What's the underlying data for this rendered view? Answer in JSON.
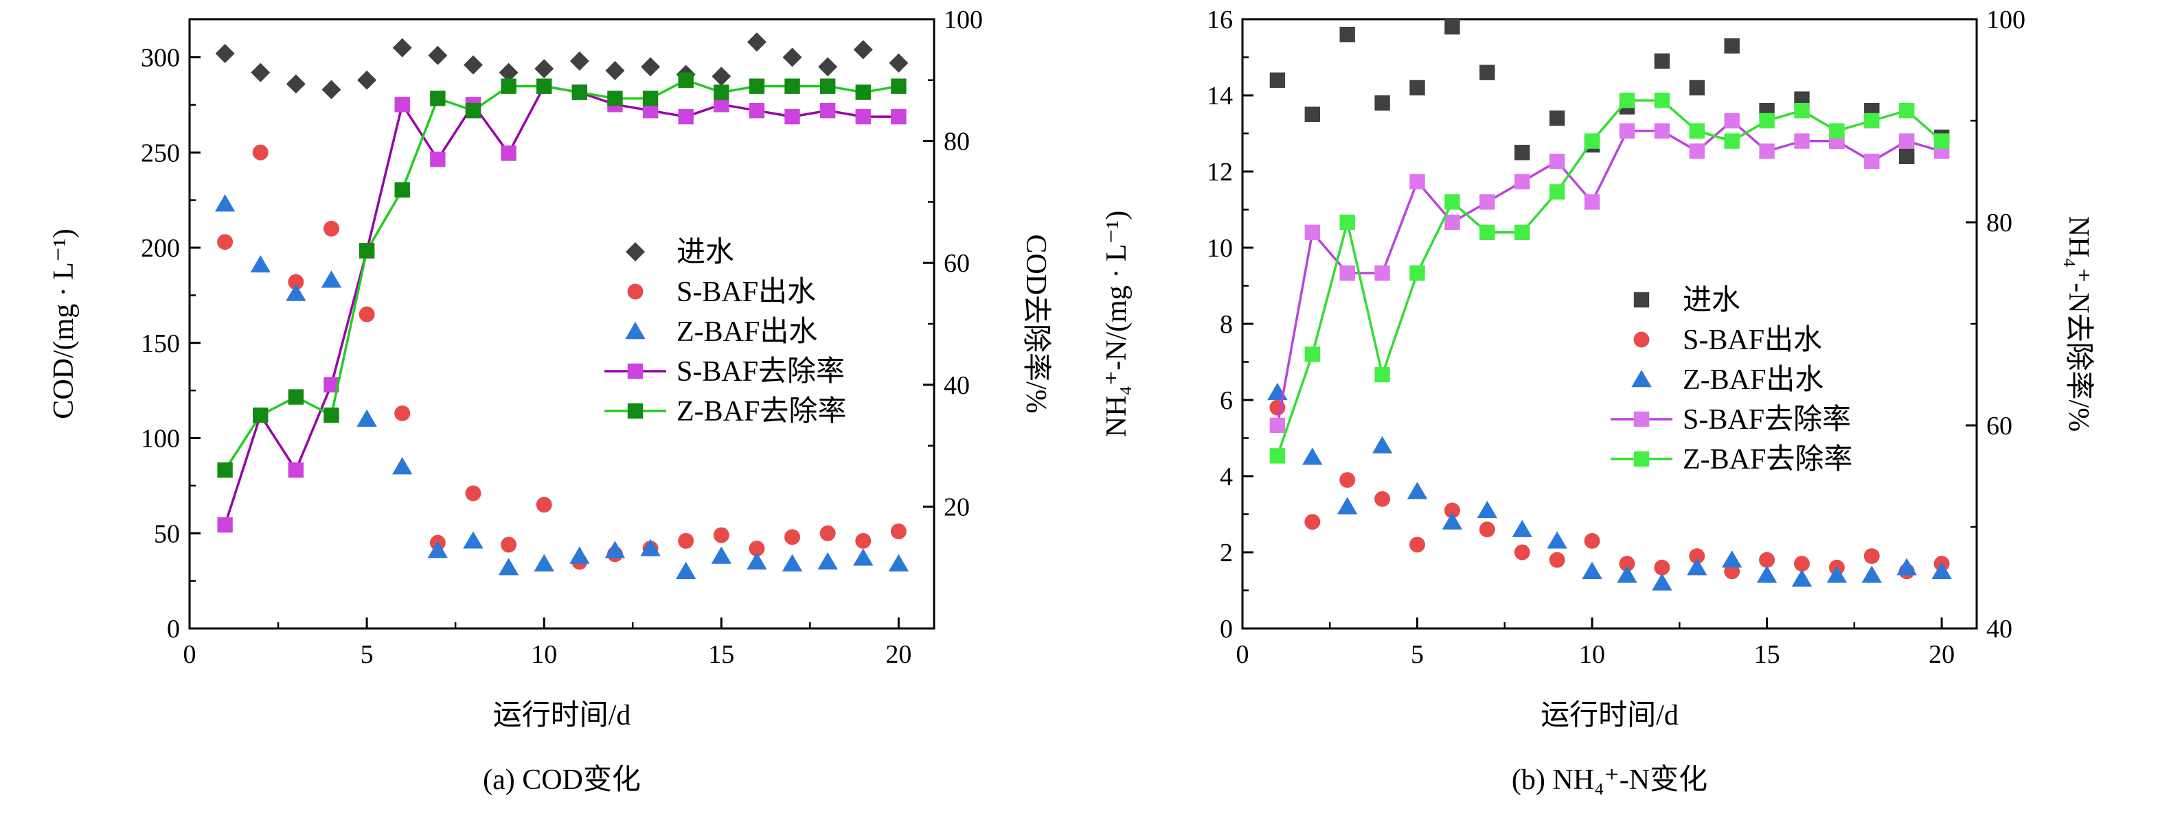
{
  "chart_data": [
    {
      "id": "cod",
      "type": "scatter",
      "caption": "(a) COD变化",
      "xlabel": "运行时间/d",
      "ylabel": "COD/(mg · L⁻¹)",
      "y2label": "COD去除率/%",
      "xlim": [
        0,
        21
      ],
      "ylim": [
        0,
        320
      ],
      "y2lim": [
        0,
        100
      ],
      "xticks": [
        0,
        5,
        10,
        15,
        20
      ],
      "yticks": [
        0,
        50,
        100,
        150,
        200,
        250,
        300
      ],
      "y2ticks": [
        20,
        40,
        60,
        80,
        100
      ],
      "grid": false,
      "legend_position": "center-right",
      "legend": [
        "进水",
        "S-BAF出水",
        "Z-BAF出水",
        "S-BAF去除率",
        "Z-BAF去除率"
      ],
      "series": [
        {
          "name": "进水",
          "axis": "left",
          "marker": "diamond",
          "color": "#404040",
          "x": [
            1,
            2,
            3,
            4,
            5,
            6,
            7,
            8,
            9,
            10,
            11,
            12,
            13,
            14,
            15,
            16,
            17,
            18,
            19,
            20
          ],
          "values": [
            302,
            292,
            286,
            283,
            288,
            305,
            301,
            296,
            292,
            294,
            298,
            293,
            295,
            291,
            290,
            308,
            300,
            295,
            304,
            297
          ]
        },
        {
          "name": "S-BAF出水",
          "axis": "left",
          "marker": "circle",
          "color": "#e84a4a",
          "x": [
            1,
            2,
            3,
            4,
            5,
            6,
            7,
            8,
            9,
            10,
            11,
            12,
            13,
            14,
            15,
            16,
            17,
            18,
            19,
            20
          ],
          "values": [
            203,
            250,
            182,
            210,
            165,
            113,
            45,
            71,
            44,
            65,
            35,
            39,
            42,
            46,
            49,
            42,
            48,
            50,
            46,
            51
          ]
        },
        {
          "name": "Z-BAF出水",
          "axis": "left",
          "marker": "triangle",
          "color": "#2b78d8",
          "x": [
            1,
            2,
            3,
            4,
            5,
            6,
            7,
            8,
            9,
            10,
            11,
            12,
            13,
            14,
            15,
            16,
            17,
            18,
            19,
            20
          ],
          "values": [
            223,
            191,
            176,
            183,
            110,
            85,
            41,
            46,
            32,
            34,
            38,
            41,
            42,
            30,
            38,
            35,
            34,
            35,
            37,
            34
          ]
        },
        {
          "name": "S-BAF去除率",
          "axis": "right",
          "marker": "square-line",
          "color": "#cc44dd",
          "line": "#9900aa",
          "x": [
            1,
            2,
            3,
            4,
            5,
            6,
            7,
            8,
            9,
            10,
            11,
            12,
            13,
            14,
            15,
            16,
            17,
            18,
            19,
            20
          ],
          "values": [
            17,
            35,
            26,
            40,
            62,
            86,
            77,
            86,
            78,
            89,
            88,
            86,
            85,
            84,
            86,
            85,
            84,
            85,
            84,
            84
          ]
        },
        {
          "name": "Z-BAF去除率",
          "axis": "right",
          "marker": "square-line",
          "color": "#138a13",
          "line": "#22cc22",
          "x": [
            1,
            2,
            3,
            4,
            5,
            6,
            7,
            8,
            9,
            10,
            11,
            12,
            13,
            14,
            15,
            16,
            17,
            18,
            19,
            20
          ],
          "values": [
            26,
            35,
            38,
            35,
            62,
            72,
            87,
            85,
            89,
            89,
            88,
            87,
            87,
            90,
            88,
            89,
            89,
            89,
            88,
            89
          ]
        }
      ]
    },
    {
      "id": "nh4",
      "type": "scatter",
      "caption": "(b) NH₄⁺-N变化",
      "xlabel": "运行时间/d",
      "ylabel": "NH₄⁺-N/(mg · L⁻¹)",
      "y2label": "NH₄⁺-N去除率/%",
      "xlim": [
        0,
        21
      ],
      "ylim": [
        0,
        16
      ],
      "y2lim": [
        40,
        100
      ],
      "xticks": [
        0,
        5,
        10,
        15,
        20
      ],
      "yticks": [
        0,
        2,
        4,
        6,
        8,
        10,
        12,
        14,
        16
      ],
      "y2ticks": [
        40,
        60,
        80,
        100
      ],
      "grid": false,
      "legend_position": "center-right",
      "legend": [
        "进水",
        "S-BAF出水",
        "Z-BAF出水",
        "S-BAF去除率",
        "Z-BAF去除率"
      ],
      "series": [
        {
          "name": "进水",
          "axis": "left",
          "marker": "square",
          "color": "#404040",
          "x": [
            1,
            2,
            3,
            4,
            5,
            6,
            7,
            8,
            9,
            10,
            11,
            12,
            13,
            14,
            15,
            16,
            17,
            18,
            19,
            20
          ],
          "values": [
            14.4,
            13.5,
            15.6,
            13.8,
            14.2,
            15.8,
            14.6,
            12.5,
            13.4,
            12.7,
            13.7,
            14.9,
            14.2,
            15.3,
            13.6,
            13.9,
            12.8,
            13.6,
            12.4,
            12.9
          ]
        },
        {
          "name": "S-BAF出水",
          "axis": "left",
          "marker": "circle",
          "color": "#e84a4a",
          "x": [
            1,
            2,
            3,
            4,
            5,
            6,
            7,
            8,
            9,
            10,
            11,
            12,
            13,
            14,
            15,
            16,
            17,
            18,
            19,
            20
          ],
          "values": [
            5.8,
            2.8,
            3.9,
            3.4,
            2.2,
            3.1,
            2.6,
            2.0,
            1.8,
            2.3,
            1.7,
            1.6,
            1.9,
            1.5,
            1.8,
            1.7,
            1.6,
            1.9,
            1.5,
            1.7
          ]
        },
        {
          "name": "Z-BAF出水",
          "axis": "left",
          "marker": "triangle",
          "color": "#2b78d8",
          "x": [
            1,
            2,
            3,
            4,
            5,
            6,
            7,
            8,
            9,
            10,
            11,
            12,
            13,
            14,
            15,
            16,
            17,
            18,
            19,
            20
          ],
          "values": [
            6.2,
            4.5,
            3.2,
            4.8,
            3.6,
            2.8,
            3.1,
            2.6,
            2.3,
            1.5,
            1.4,
            1.2,
            1.6,
            1.8,
            1.4,
            1.3,
            1.4,
            1.4,
            1.6,
            1.5
          ]
        },
        {
          "name": "S-BAF去除率",
          "axis": "right",
          "marker": "square-line",
          "color": "#dd77ee",
          "line": "#bb44dd",
          "x": [
            1,
            2,
            3,
            4,
            5,
            6,
            7,
            8,
            9,
            10,
            11,
            12,
            13,
            14,
            15,
            16,
            17,
            18,
            19,
            20
          ],
          "values": [
            60,
            79,
            75,
            75,
            84,
            80,
            82,
            84,
            86,
            82,
            89,
            89,
            87,
            90,
            87,
            88,
            88,
            86,
            88,
            87
          ]
        },
        {
          "name": "Z-BAF去除率",
          "axis": "right",
          "marker": "square-line",
          "color": "#44ee44",
          "line": "#33dd33",
          "x": [
            1,
            2,
            3,
            4,
            5,
            6,
            7,
            8,
            9,
            10,
            11,
            12,
            13,
            14,
            15,
            16,
            17,
            18,
            19,
            20
          ],
          "values": [
            57,
            67,
            80,
            65,
            75,
            82,
            79,
            79,
            83,
            88,
            92,
            92,
            89,
            88,
            90,
            91,
            89,
            90,
            91,
            88
          ]
        }
      ]
    }
  ]
}
